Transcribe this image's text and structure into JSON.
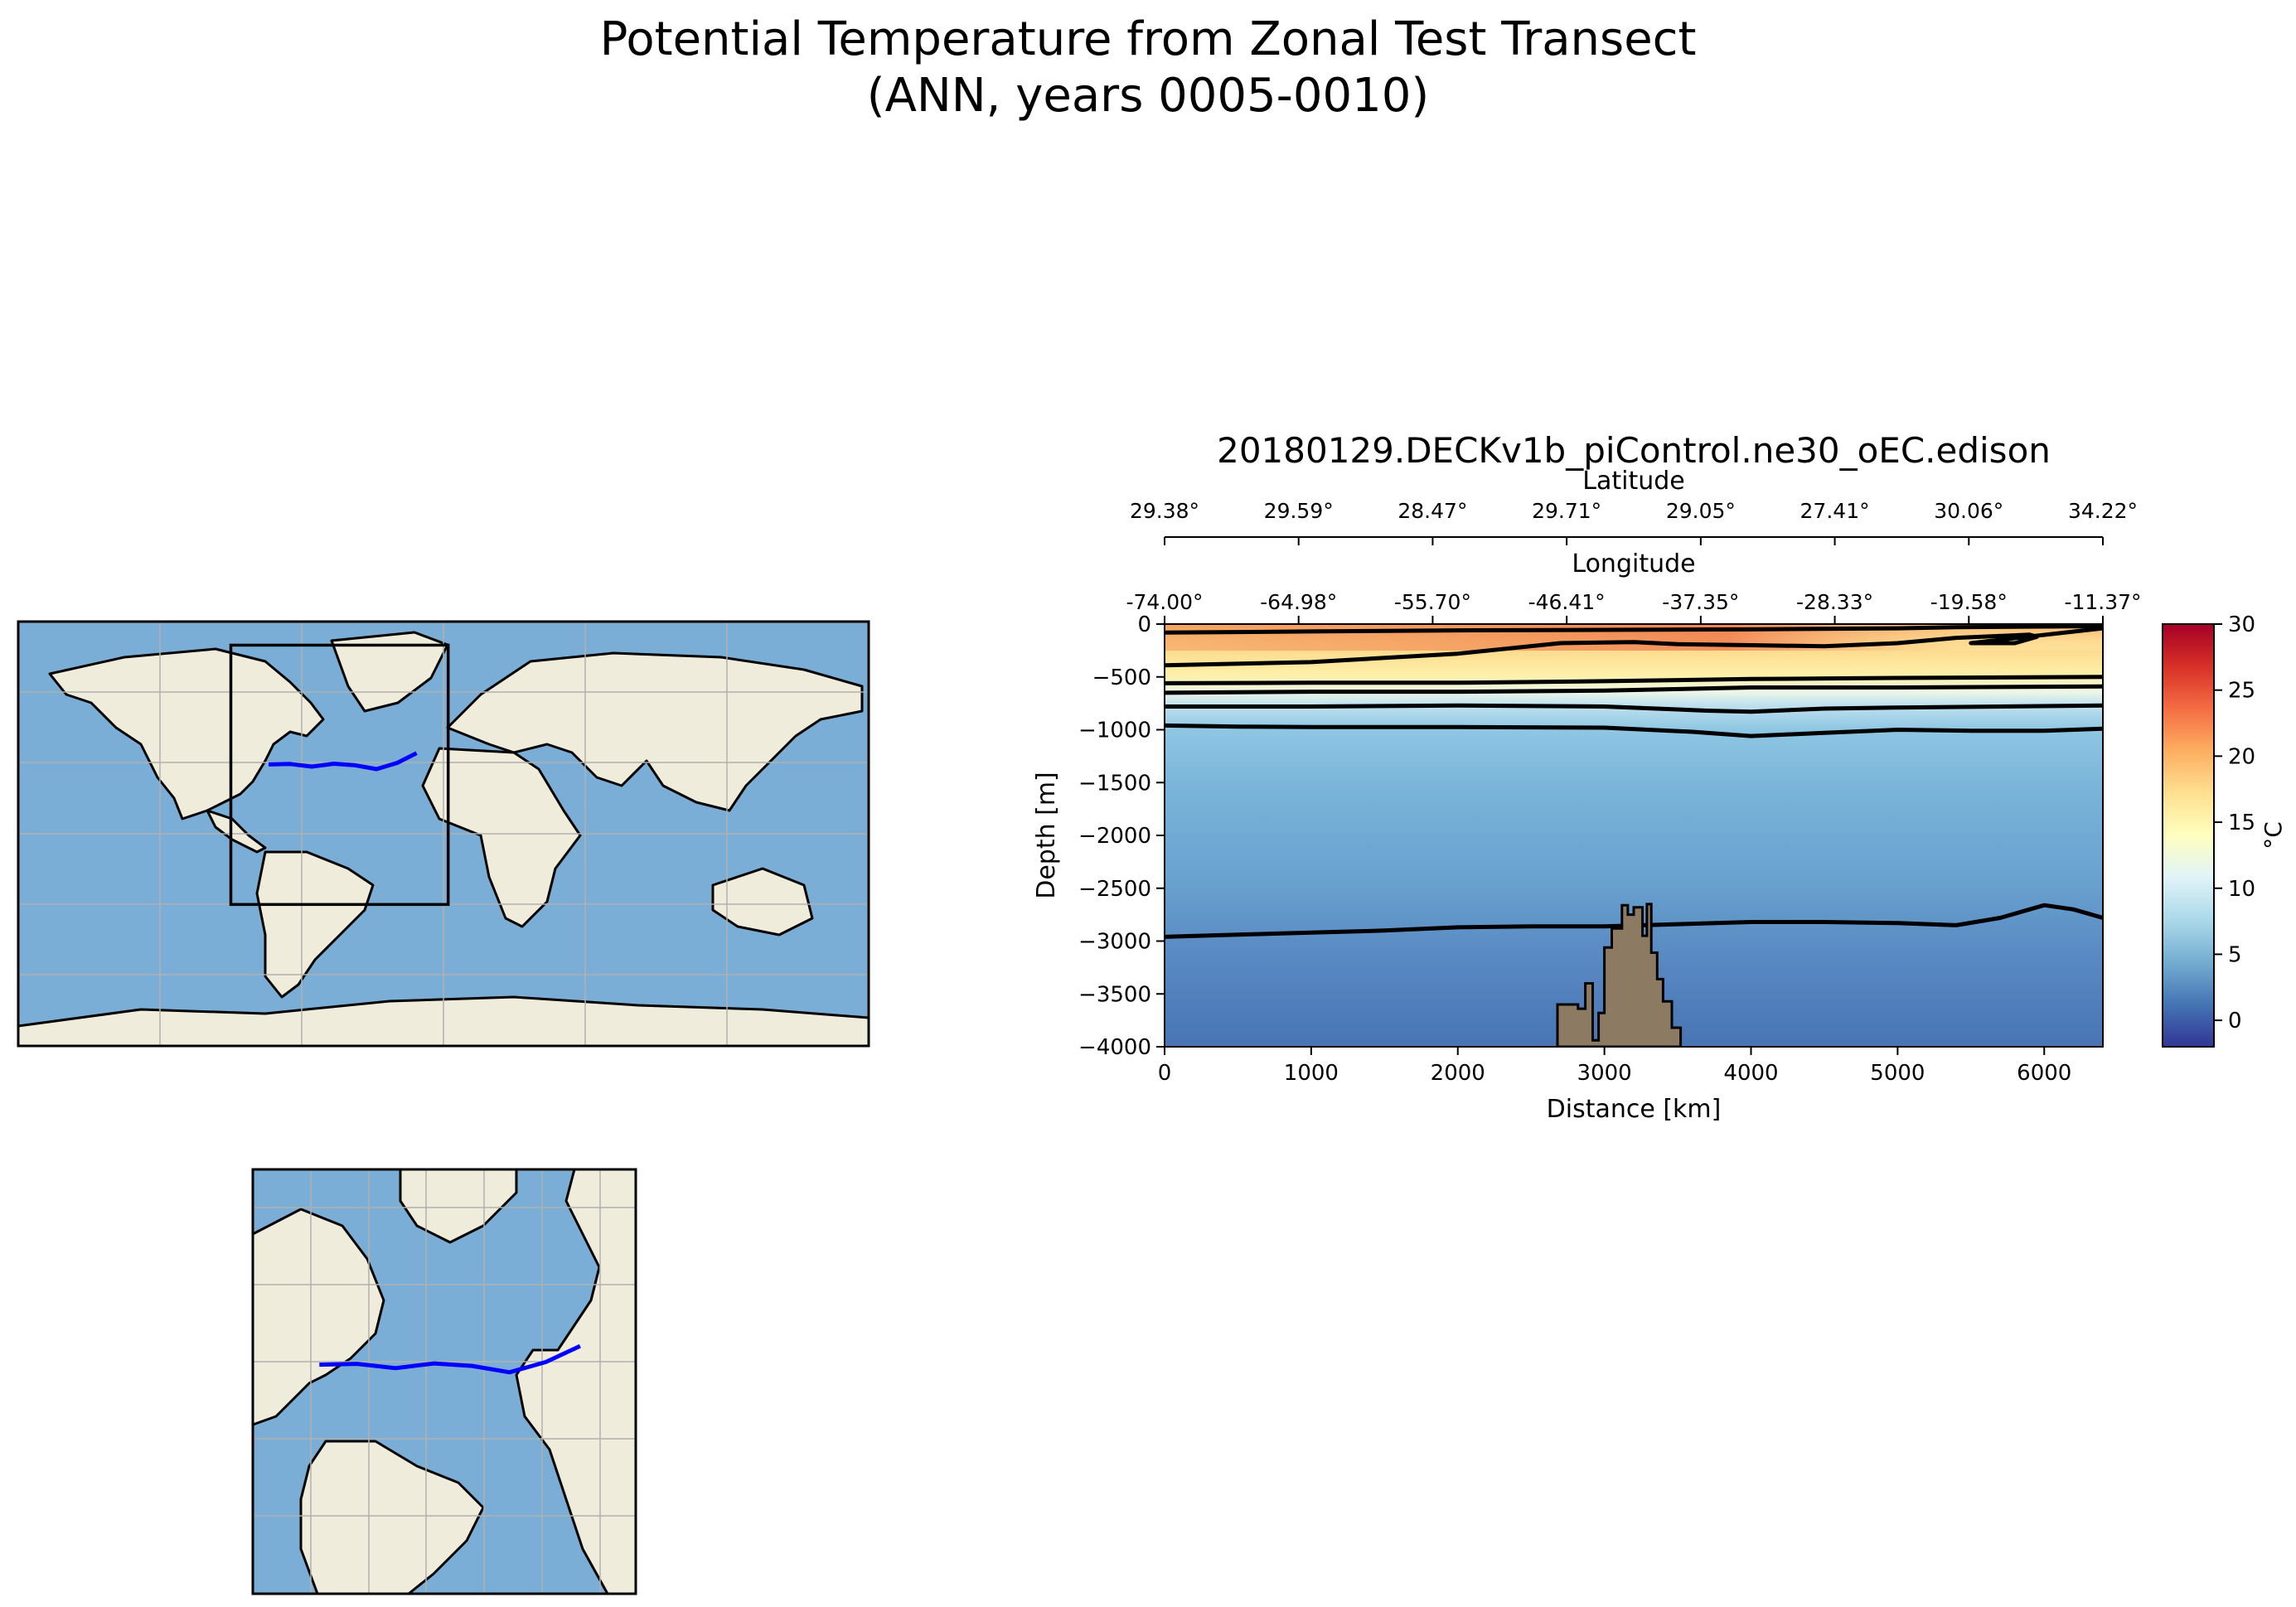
{
  "figure": {
    "title_line1": "Potential Temperature from Zonal Test Transect",
    "title_line2": "(ANN, years 0005-0010)"
  },
  "colors": {
    "ocean": "#7aaed6",
    "land": "#efecdb",
    "grid": "#b0b0b0",
    "transect": "#0000ff",
    "topography": "#8c7b62"
  },
  "chart_data": [
    {
      "type": "map",
      "panel": "global-map",
      "projection": "plate-carree",
      "extent_lon": [
        -180,
        180
      ],
      "extent_lat": [
        -90,
        90
      ],
      "gridlines": true,
      "region_box_lon": [
        -90,
        2
      ],
      "region_box_lat": [
        -30,
        80
      ],
      "transect": {
        "lon": [
          -74.0,
          -64.98,
          -55.7,
          -46.41,
          -37.35,
          -28.33,
          -19.58,
          -11.37
        ],
        "lat": [
          29.38,
          29.59,
          28.47,
          29.71,
          29.05,
          27.41,
          30.06,
          34.22
        ]
      }
    },
    {
      "type": "map",
      "panel": "regional-map",
      "projection": "plate-carree",
      "extent_lon": [
        -90,
        2
      ],
      "extent_lat": [
        -30,
        80
      ],
      "gridlines": true,
      "transect": {
        "lon": [
          -74.0,
          -64.98,
          -55.7,
          -46.41,
          -37.35,
          -28.33,
          -19.58,
          -11.37
        ],
        "lat": [
          29.38,
          29.59,
          28.47,
          29.71,
          29.05,
          27.41,
          30.06,
          34.22
        ]
      }
    },
    {
      "type": "heatmap",
      "panel": "transect-section",
      "title": "20180129.DECKv1b_piControl.ne30_oEC.edison",
      "xlabel": "Distance [km]",
      "ylabel": "Depth [m]",
      "xlim": [
        0,
        6400
      ],
      "ylim": [
        -4000,
        0
      ],
      "xticks": [
        0,
        1000,
        2000,
        3000,
        4000,
        5000,
        6000
      ],
      "yticks": [
        0,
        -500,
        -1000,
        -1500,
        -2000,
        -2500,
        -3000,
        -3500,
        -4000
      ],
      "top_axis_1": {
        "label": "Longitude",
        "ticks": [
          "-74.00°",
          "-64.98°",
          "-55.70°",
          "-46.41°",
          "-37.35°",
          "-28.33°",
          "-19.58°",
          "-11.37°"
        ]
      },
      "top_axis_2": {
        "label": "Latitude",
        "ticks": [
          "29.38°",
          "29.59°",
          "28.47°",
          "29.71°",
          "29.05°",
          "27.41°",
          "30.06°",
          "34.22°"
        ]
      },
      "colorbar": {
        "label": "°C",
        "range": [
          -2,
          30
        ],
        "ticks": [
          0,
          5,
          10,
          15,
          20,
          25,
          30
        ],
        "colormap": "RdYlBu_r"
      },
      "contours": [
        {
          "x": [
            0,
            500,
            1000,
            2000,
            3000,
            4000,
            5000,
            5400,
            6400
          ],
          "y": [
            -80,
            -75,
            -70,
            -60,
            -55,
            -50,
            -40,
            -30,
            -20
          ]
        },
        {
          "x": [
            0,
            1000,
            2000,
            2700,
            3200,
            3500,
            4000,
            4500,
            5000,
            5400,
            5900,
            5950,
            5800,
            5500,
            6400
          ],
          "y": [
            -390,
            -360,
            -280,
            -180,
            -170,
            -190,
            -200,
            -210,
            -180,
            -130,
            -100,
            -120,
            -180,
            -180,
            -40
          ]
        },
        {
          "x": [
            0,
            1000,
            2000,
            3000,
            4000,
            5000,
            6400
          ],
          "y": [
            -560,
            -555,
            -555,
            -540,
            -520,
            -510,
            -500
          ]
        },
        {
          "x": [
            0,
            1000,
            2000,
            3000,
            4000,
            5000,
            6400
          ],
          "y": [
            -650,
            -640,
            -640,
            -630,
            -600,
            -600,
            -590
          ]
        },
        {
          "x": [
            0,
            1000,
            2000,
            3000,
            3700,
            4000,
            4500,
            5000,
            6400
          ],
          "y": [
            -780,
            -780,
            -770,
            -780,
            -820,
            -830,
            -800,
            -790,
            -770
          ]
        },
        {
          "x": [
            0,
            500,
            1000,
            2000,
            3000,
            3600,
            4000,
            4500,
            5000,
            5500,
            6000,
            6400
          ],
          "y": [
            -960,
            -970,
            -975,
            -975,
            -980,
            -1020,
            -1060,
            -1030,
            -1000,
            -1010,
            -1010,
            -990
          ]
        },
        {
          "x": [
            0,
            500,
            1000,
            1500,
            2000,
            2500,
            3000,
            3500,
            4000,
            4500,
            5000,
            5400,
            5700,
            6000,
            6200,
            6400
          ],
          "y": [
            -2960,
            -2940,
            -2920,
            -2900,
            -2870,
            -2860,
            -2860,
            -2840,
            -2820,
            -2820,
            -2830,
            -2850,
            -2780,
            -2660,
            -2700,
            -2780
          ]
        }
      ],
      "bathymetry_x": [
        2680,
        2680,
        2820,
        2820,
        2870,
        2870,
        2920,
        2920,
        2960,
        2960,
        3000,
        3000,
        3050,
        3050,
        3120,
        3120,
        3160,
        3160,
        3200,
        3200,
        3260,
        3260,
        3290,
        3290,
        3320,
        3320,
        3360,
        3360,
        3400,
        3400,
        3460,
        3460,
        3520,
        3520
      ],
      "bathymetry_y": [
        -4000,
        -3600,
        -3600,
        -3640,
        -3640,
        -3400,
        -3400,
        -3940,
        -3940,
        -3680,
        -3680,
        -3060,
        -3060,
        -2880,
        -2880,
        -2660,
        -2660,
        -2750,
        -2750,
        -2680,
        -2680,
        -2950,
        -2950,
        -2650,
        -2650,
        -3110,
        -3110,
        -3360,
        -3360,
        -3570,
        -3570,
        -3820,
        -3820,
        -4000
      ]
    }
  ]
}
